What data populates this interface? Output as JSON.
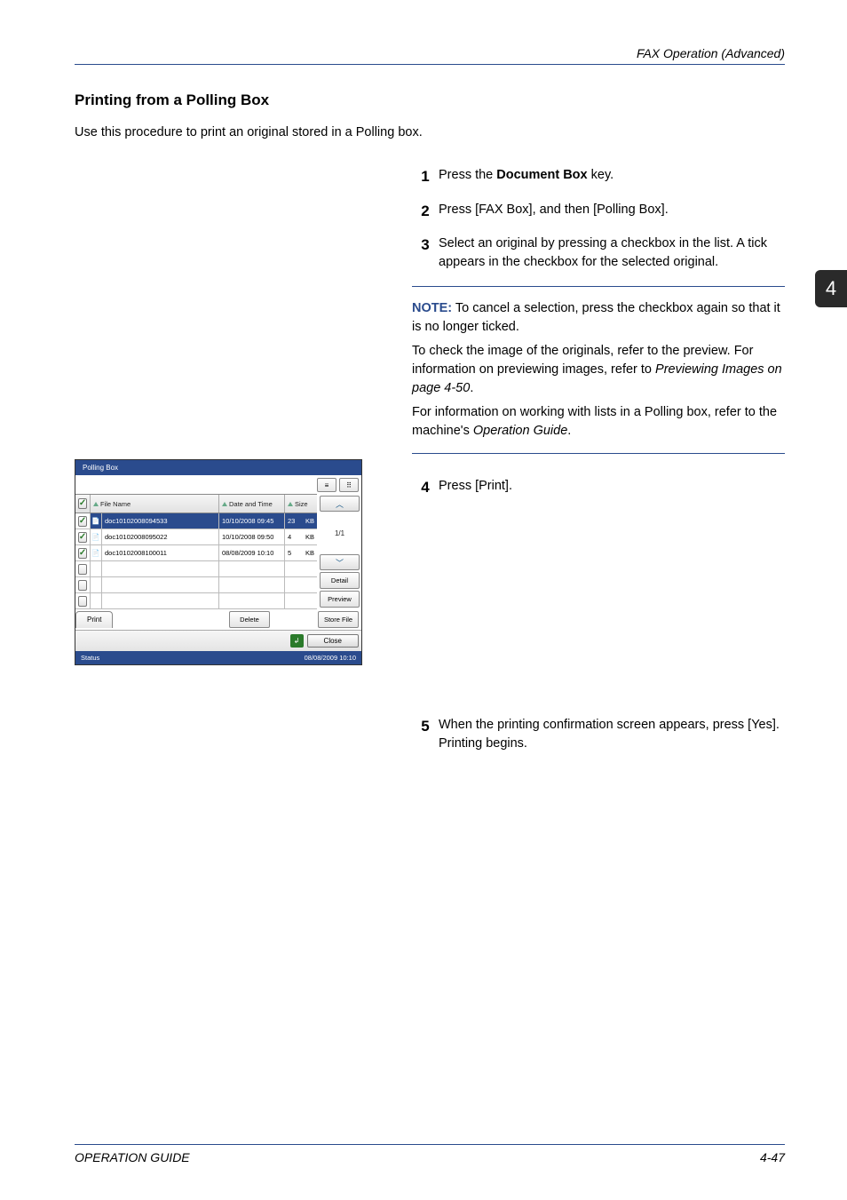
{
  "header": {
    "section_name": "FAX Operation (Advanced)"
  },
  "chapter_tab": "4",
  "title": "Printing from a Polling Box",
  "intro": "Use this procedure to print an original stored in a Polling box.",
  "steps": {
    "s1": {
      "num": "1",
      "pre": "Press the ",
      "bold": "Document Box",
      "post": " key."
    },
    "s2": {
      "num": "2",
      "text": "Press [FAX Box], and then [Polling Box]."
    },
    "s3": {
      "num": "3",
      "text": "Select an original by pressing a checkbox in the list. A tick appears in the checkbox for the selected original."
    },
    "s4": {
      "num": "4",
      "text": "Press [Print]."
    },
    "s5": {
      "num": "5",
      "text": "When the printing confirmation screen appears, press [Yes]. Printing begins."
    }
  },
  "note": {
    "label": "NOTE:",
    "p1_rest": " To cancel a selection, press the checkbox again so that it is no longer ticked.",
    "p2_pre": "To check the image of the originals, refer to the preview. For information on previewing images, refer to ",
    "p2_ital": "Previewing Images on page 4-50",
    "p3_pre": "For information on working with lists in a Polling box, refer to the machine's ",
    "p3_ital": "Operation Guide"
  },
  "footer": {
    "guide": "OPERATION GUIDE",
    "page": "4-47"
  },
  "polling_ui": {
    "title": "Polling Box",
    "columns": {
      "name": "File Name",
      "date": "Date and Time",
      "size": "Size"
    },
    "rows": [
      {
        "checked": true,
        "selected": true,
        "name": "doc10102008094533",
        "date": "10/10/2008 09:45",
        "size_num": "23",
        "size_unit": "KB"
      },
      {
        "checked": true,
        "selected": false,
        "name": "doc10102008095022",
        "date": "10/10/2008 09:50",
        "size_num": "4",
        "size_unit": "KB"
      },
      {
        "checked": true,
        "selected": false,
        "name": "doc10102008100011",
        "date": "08/08/2009  10:10",
        "size_num": "5",
        "size_unit": "KB"
      },
      {
        "checked": false,
        "selected": false,
        "name": "",
        "date": "",
        "size_num": "",
        "size_unit": ""
      },
      {
        "checked": false,
        "selected": false,
        "name": "",
        "date": "",
        "size_num": "",
        "size_unit": ""
      },
      {
        "checked": false,
        "selected": false,
        "name": "",
        "date": "",
        "size_num": "",
        "size_unit": ""
      }
    ],
    "page_indicator": "1/1",
    "side_buttons": {
      "detail": "Detail",
      "preview": "Preview"
    },
    "bottom": {
      "print": "Print",
      "delete": "Delete",
      "store": "Store File",
      "close": "Close"
    },
    "statusbar": {
      "status": "Status",
      "datetime": "08/08/2009   10:10"
    },
    "colors": {
      "primary": "#2a4b8d",
      "row_bg": "#ffffff",
      "grid": "#bbbbbb"
    }
  }
}
